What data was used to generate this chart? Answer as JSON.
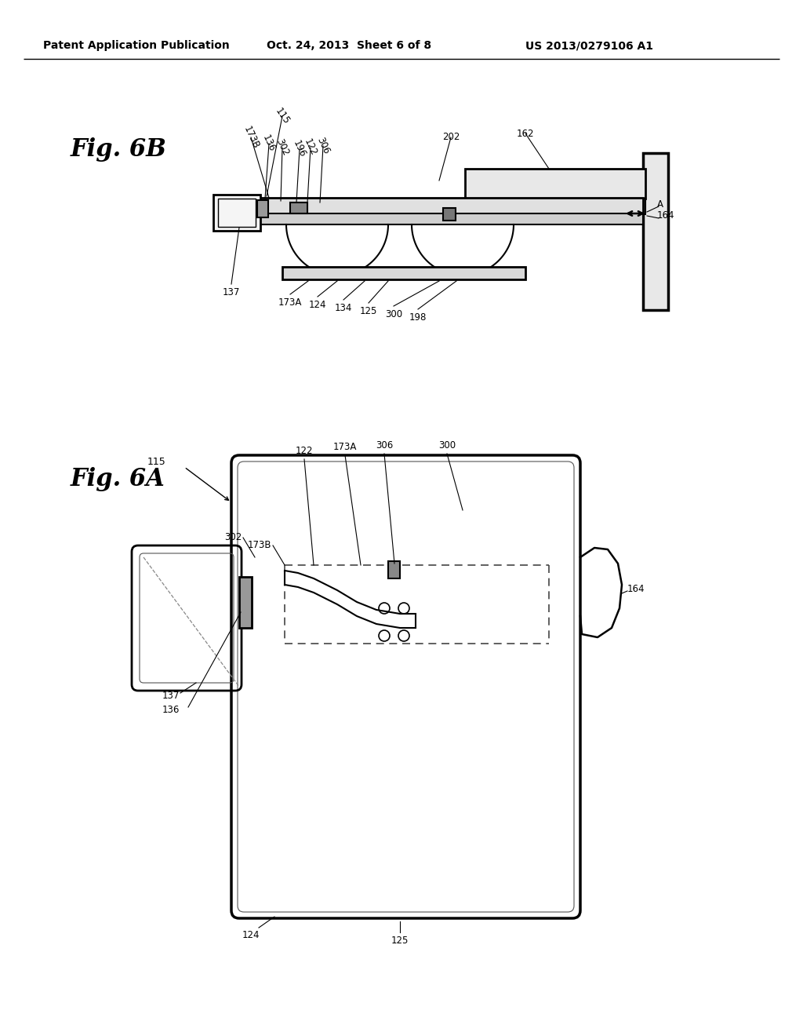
{
  "background_color": "#ffffff",
  "header_left": "Patent Application Publication",
  "header_center": "Oct. 24, 2013  Sheet 6 of 8",
  "header_right": "US 2013/0279106 A1",
  "fig_6b_label": "Fig. 6B",
  "fig_6a_label": "Fig. 6A",
  "line_color": "#000000",
  "text_color": "#000000"
}
